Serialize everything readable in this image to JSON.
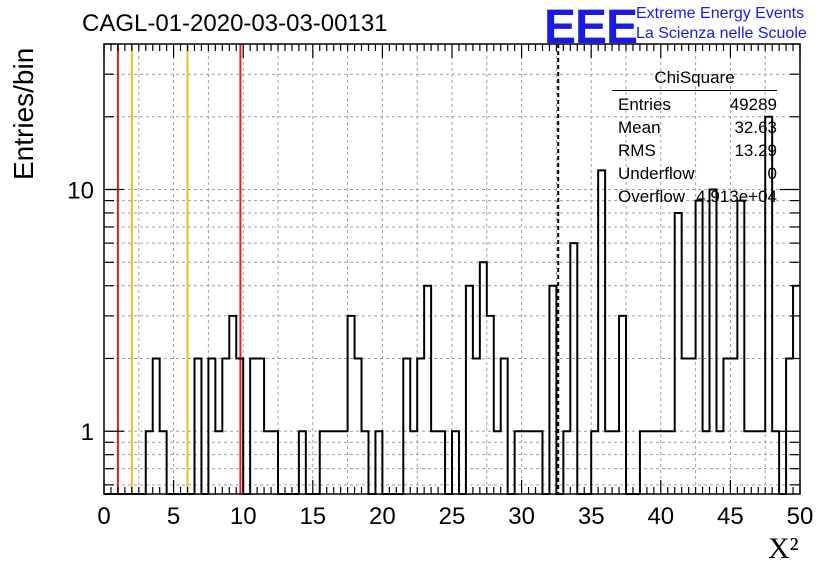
{
  "header": {
    "title": "CAGL-01-2020-03-03-00131",
    "logo_mark": "EEE",
    "logo_line1": "Extreme Energy Events",
    "logo_line2": "La Scienza nelle Scuole"
  },
  "stats": {
    "name": "ChiSquare",
    "rows": [
      {
        "label": "Entries",
        "value": "49289"
      },
      {
        "label": "Mean",
        "value": "32.63"
      },
      {
        "label": "RMS",
        "value": "13.29"
      },
      {
        "label": "Underflow",
        "value": "0"
      },
      {
        "label": "Overflow",
        "value": "4.913e+04"
      }
    ]
  },
  "chart_data": {
    "type": "histogram",
    "title": "CAGL-01-2020-03-03-00131",
    "xlabel": "X²",
    "ylabel": "Entries/bin",
    "xlim": [
      0,
      50
    ],
    "ylim": [
      0.55,
      40
    ],
    "log_y": true,
    "grid": true,
    "x_ticks": [
      "0",
      "5",
      "10",
      "15",
      "20",
      "25",
      "30",
      "35",
      "40",
      "45",
      "50"
    ],
    "y_ticks": [
      "1",
      "10"
    ],
    "bin_width": 0.5,
    "bins": [
      {
        "x": 3.0,
        "y": 1
      },
      {
        "x": 3.5,
        "y": 2
      },
      {
        "x": 4.0,
        "y": 1
      },
      {
        "x": 6.5,
        "y": 2
      },
      {
        "x": 7.5,
        "y": 2
      },
      {
        "x": 8.0,
        "y": 1
      },
      {
        "x": 8.5,
        "y": 2
      },
      {
        "x": 9.0,
        "y": 3
      },
      {
        "x": 9.5,
        "y": 2
      },
      {
        "x": 10.5,
        "y": 2
      },
      {
        "x": 11.0,
        "y": 2
      },
      {
        "x": 11.5,
        "y": 1
      },
      {
        "x": 12.0,
        "y": 1
      },
      {
        "x": 14.0,
        "y": 1
      },
      {
        "x": 15.5,
        "y": 1
      },
      {
        "x": 16.0,
        "y": 1
      },
      {
        "x": 16.5,
        "y": 1
      },
      {
        "x": 17.0,
        "y": 1
      },
      {
        "x": 17.5,
        "y": 3
      },
      {
        "x": 18.0,
        "y": 2
      },
      {
        "x": 18.5,
        "y": 1
      },
      {
        "x": 19.5,
        "y": 1
      },
      {
        "x": 21.5,
        "y": 2
      },
      {
        "x": 22.0,
        "y": 1
      },
      {
        "x": 22.5,
        "y": 2
      },
      {
        "x": 23.0,
        "y": 4
      },
      {
        "x": 23.5,
        "y": 1
      },
      {
        "x": 24.0,
        "y": 1
      },
      {
        "x": 25.0,
        "y": 1
      },
      {
        "x": 26.0,
        "y": 4
      },
      {
        "x": 26.5,
        "y": 2
      },
      {
        "x": 27.0,
        "y": 5
      },
      {
        "x": 27.5,
        "y": 3
      },
      {
        "x": 28.0,
        "y": 1
      },
      {
        "x": 28.5,
        "y": 2
      },
      {
        "x": 29.5,
        "y": 1
      },
      {
        "x": 30.0,
        "y": 1
      },
      {
        "x": 30.5,
        "y": 1
      },
      {
        "x": 31.0,
        "y": 1
      },
      {
        "x": 32.0,
        "y": 4
      },
      {
        "x": 33.0,
        "y": 1
      },
      {
        "x": 33.5,
        "y": 6
      },
      {
        "x": 35.0,
        "y": 1
      },
      {
        "x": 35.5,
        "y": 12
      },
      {
        "x": 36.0,
        "y": 1
      },
      {
        "x": 36.5,
        "y": 1
      },
      {
        "x": 37.0,
        "y": 3
      },
      {
        "x": 38.5,
        "y": 1
      },
      {
        "x": 39.0,
        "y": 1
      },
      {
        "x": 39.5,
        "y": 1
      },
      {
        "x": 40.0,
        "y": 1
      },
      {
        "x": 40.5,
        "y": 1
      },
      {
        "x": 41.0,
        "y": 8
      },
      {
        "x": 41.5,
        "y": 2
      },
      {
        "x": 42.0,
        "y": 2
      },
      {
        "x": 42.5,
        "y": 9
      },
      {
        "x": 43.0,
        "y": 1
      },
      {
        "x": 43.5,
        "y": 10
      },
      {
        "x": 44.0,
        "y": 1
      },
      {
        "x": 44.5,
        "y": 2
      },
      {
        "x": 45.0,
        "y": 2
      },
      {
        "x": 45.5,
        "y": 9
      },
      {
        "x": 46.0,
        "y": 1
      },
      {
        "x": 46.5,
        "y": 1
      },
      {
        "x": 47.0,
        "y": 1
      },
      {
        "x": 47.5,
        "y": 20
      },
      {
        "x": 48.0,
        "y": 1
      },
      {
        "x": 49.0,
        "y": 2
      },
      {
        "x": 49.5,
        "y": 4
      }
    ],
    "reference_lines": [
      {
        "x": 1.0,
        "color": "#e02020",
        "style": "solid"
      },
      {
        "x": 2.0,
        "color": "#e8c020",
        "style": "solid"
      },
      {
        "x": 6.0,
        "color": "#e8c020",
        "style": "solid"
      },
      {
        "x": 9.8,
        "color": "#e02020",
        "style": "solid"
      },
      {
        "x": 32.63,
        "color": "#000000",
        "style": "dashed"
      }
    ]
  }
}
